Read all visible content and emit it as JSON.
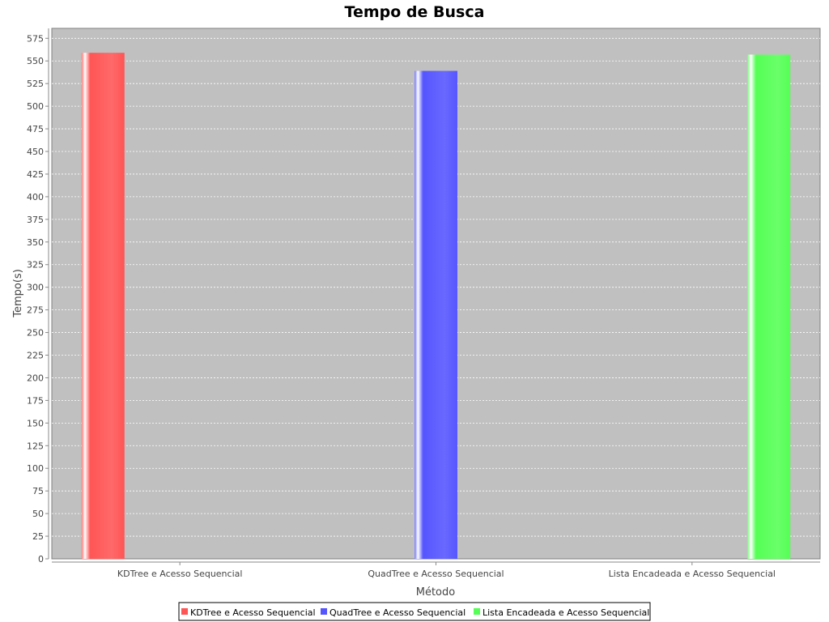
{
  "chart_data": {
    "type": "bar",
    "title": "Tempo de Busca",
    "xlabel": "Método",
    "ylabel": "Tempo(s)",
    "categories": [
      "KDTree e Acesso Sequencial",
      "QuadTree e Acesso Sequencial",
      "Lista Encadeada e Acesso Sequencial"
    ],
    "series": [
      {
        "name": "KDTree e Acesso Sequencial",
        "color": "#ff5555",
        "values": [
          559,
          null,
          null
        ]
      },
      {
        "name": "QuadTree e Acesso Sequencial",
        "color": "#5555ff",
        "values": [
          null,
          539,
          null
        ]
      },
      {
        "name": "Lista Encadeada e Acesso Sequencial",
        "color": "#55ff55",
        "values": [
          null,
          null,
          557
        ]
      }
    ],
    "ylim": [
      0,
      586
    ],
    "yticks": [
      0,
      25,
      50,
      75,
      100,
      125,
      150,
      175,
      200,
      225,
      250,
      275,
      300,
      325,
      350,
      375,
      400,
      425,
      450,
      475,
      500,
      525,
      550,
      575
    ],
    "grid": true,
    "legend_position": "bottom",
    "plot_background": "#c0c0c0"
  }
}
